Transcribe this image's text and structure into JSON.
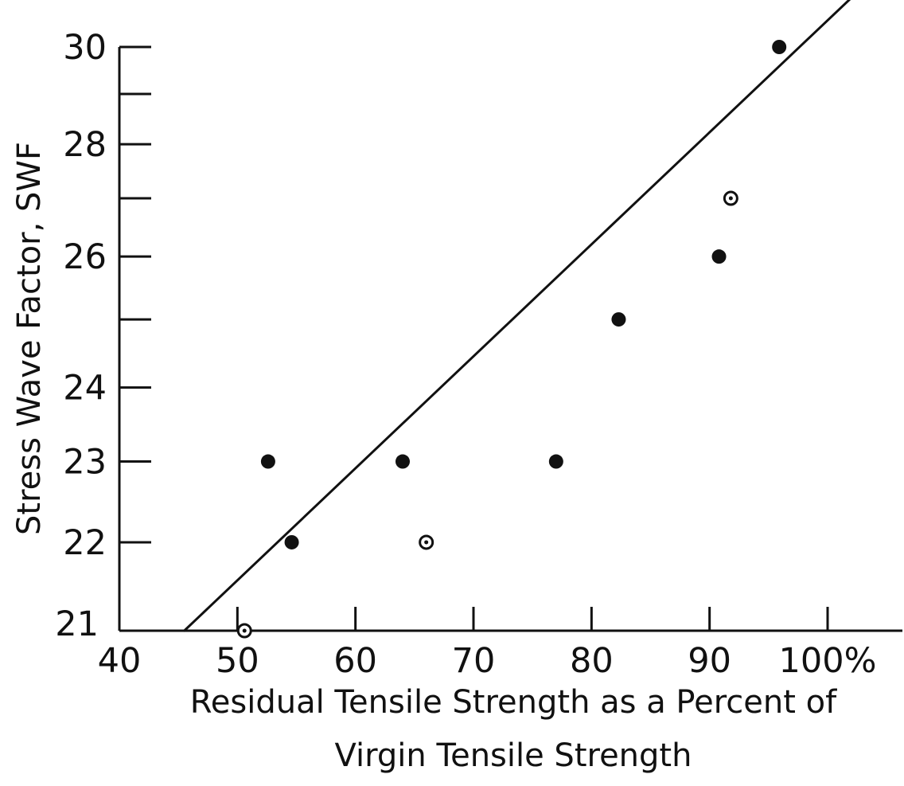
{
  "chart_data": {
    "type": "scatter",
    "title": "",
    "xlabel_lines": [
      "Residual Tensile Strength as a Percent of",
      "Virgin Tensile Strength"
    ],
    "ylabel": "Stress Wave Factor, SWF",
    "xlim": [
      40,
      104
    ],
    "ylim": [
      21,
      30
    ],
    "y_scale": "reciprocal",
    "x_ticks": [
      40,
      50,
      60,
      70,
      80,
      90,
      100
    ],
    "x_tick_labels": [
      "40",
      "50",
      "60",
      "70",
      "80",
      "90",
      "100%"
    ],
    "y_ticks": [
      21,
      22,
      23,
      24,
      25,
      26,
      27,
      28,
      29,
      30
    ],
    "y_tick_labels": [
      "21",
      "22",
      "23",
      "24",
      "",
      "26",
      "",
      "28",
      "",
      "30"
    ],
    "grid": false,
    "legend": "none",
    "series": [
      {
        "marker": "filled-circle",
        "points": [
          {
            "x": 52.6,
            "y": 23.0
          },
          {
            "x": 54.6,
            "y": 22.0
          },
          {
            "x": 64.0,
            "y": 23.0
          },
          {
            "x": 77.0,
            "y": 23.0
          },
          {
            "x": 82.3,
            "y": 25.0
          },
          {
            "x": 90.8,
            "y": 26.0
          },
          {
            "x": 95.9,
            "y": 30.0
          }
        ]
      },
      {
        "marker": "open-circle",
        "points": [
          {
            "x": 50.6,
            "y": 21.0
          },
          {
            "x": 66.0,
            "y": 22.0
          },
          {
            "x": 91.8,
            "y": 27.0
          }
        ]
      }
    ],
    "fit_line": [
      {
        "x": 45.5,
        "y": 21.0
      },
      {
        "x": 102.3,
        "y": 31.2
      }
    ],
    "colors": {
      "ink": "#111111",
      "background": "#ffffff"
    }
  }
}
